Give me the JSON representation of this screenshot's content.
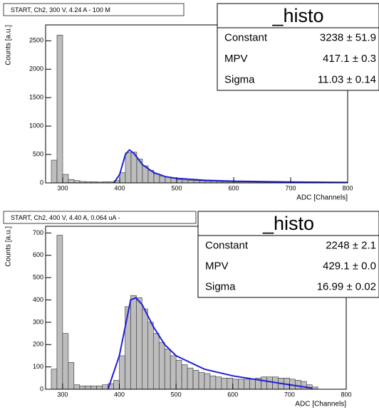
{
  "chart_data": [
    {
      "type": "histogram",
      "title": "START, Ch2, 300 V, 4.24 A - 100 M",
      "xlabel": "ADC [Channels]",
      "ylabel": "Counts [a.u.]",
      "color": "#333333",
      "bins": [
        280,
        290,
        300,
        310,
        320,
        330,
        340,
        350,
        360,
        370,
        380,
        390,
        400,
        410,
        420,
        430,
        440,
        450,
        460,
        470,
        480,
        490,
        500,
        510,
        520,
        530,
        540,
        550,
        560,
        570,
        580,
        590,
        600,
        610,
        620,
        630,
        640,
        650,
        660,
        670,
        680,
        690,
        700,
        710,
        720,
        730,
        740,
        750
      ],
      "counts": [
        400,
        2600,
        150,
        60,
        40,
        25,
        20,
        20,
        15,
        20,
        20,
        40,
        180,
        530,
        540,
        420,
        300,
        220,
        160,
        120,
        100,
        80,
        60,
        50,
        45,
        40,
        35,
        30,
        28,
        25,
        22,
        20,
        18,
        17,
        16,
        15,
        14,
        13,
        12,
        12,
        11,
        10,
        10,
        9,
        8,
        8,
        7
      ],
      "fit": {
        "color": "#1f1fd8",
        "x": [
          390,
          400,
          410,
          417,
          425,
          440,
          460,
          480,
          500,
          550,
          600,
          700,
          800
        ],
        "values": [
          0,
          150,
          500,
          580,
          520,
          320,
          180,
          110,
          80,
          45,
          30,
          15,
          8
        ]
      },
      "stats": {
        "title": "_histo",
        "rows": [
          {
            "name": "Constant",
            "value": "3238 ± 51.9"
          },
          {
            "name": "MPV",
            "value": "417.1 ± 0.3"
          },
          {
            "name": "Sigma",
            "value": "11.03 ± 0.14"
          }
        ]
      },
      "xlim": [
        270,
        800
      ],
      "ylim": [
        0,
        2780
      ],
      "xticks": [
        300,
        400,
        500,
        600,
        700,
        800
      ],
      "yticks": [
        0,
        500,
        1000,
        1500,
        2000,
        2500
      ]
    },
    {
      "type": "histogram",
      "title": "START, Ch2, 400 V, 4.40 A, 0.064 uA -",
      "xlabel": "ADC [Channels]",
      "ylabel": "Counts [a.u.]",
      "color": "#333333",
      "bins": [
        280,
        290,
        300,
        310,
        320,
        330,
        340,
        350,
        360,
        370,
        380,
        390,
        400,
        410,
        420,
        430,
        440,
        450,
        460,
        470,
        480,
        490,
        500,
        510,
        520,
        530,
        540,
        550,
        560,
        570,
        580,
        590,
        600,
        610,
        620,
        630,
        640,
        650,
        660,
        670,
        680,
        690,
        700,
        710,
        720,
        730,
        740,
        750
      ],
      "counts": [
        90,
        690,
        250,
        120,
        20,
        15,
        15,
        15,
        15,
        20,
        25,
        40,
        150,
        370,
        420,
        410,
        360,
        300,
        250,
        210,
        180,
        150,
        130,
        110,
        95,
        85,
        75,
        70,
        60,
        55,
        50,
        50,
        45,
        45,
        45,
        45,
        50,
        55,
        55,
        55,
        50,
        50,
        45,
        40,
        35,
        20,
        10
      ],
      "fit": {
        "color": "#1f1fd8",
        "x": [
          380,
          400,
          420,
          429,
          440,
          460,
          480,
          500,
          550,
          600,
          650,
          700,
          740
        ],
        "values": [
          0,
          150,
          400,
          410,
          380,
          280,
          200,
          150,
          90,
          60,
          40,
          20,
          5
        ]
      },
      "stats": {
        "title": "_histo",
        "rows": [
          {
            "name": "Constant",
            "value": "2248 ± 2.1"
          },
          {
            "name": "MPV",
            "value": "429.1 ± 0.0"
          },
          {
            "name": "Sigma",
            "value": "16.99 ± 0.02"
          }
        ]
      },
      "xlim": [
        270,
        800
      ],
      "ylim": [
        0,
        730
      ],
      "xticks": [
        300,
        400,
        500,
        600,
        700,
        800
      ],
      "yticks": [
        0,
        100,
        200,
        300,
        400,
        500,
        600,
        700
      ]
    }
  ]
}
